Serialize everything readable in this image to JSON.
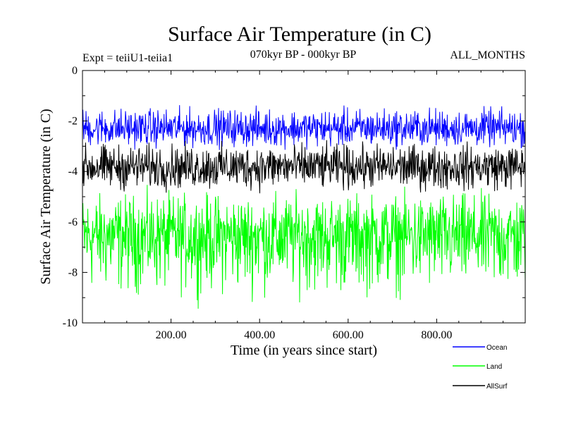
{
  "chart_data": {
    "type": "line",
    "title": "Surface Air Temperature (in C)",
    "subtitle": "070kyr BP - 000kyr BP",
    "left_label": "Expt = teiiU1-teiia1",
    "right_label": "ALL_MONTHS",
    "xlabel": "Time (in years since start)",
    "ylabel": "Surface Air Temperature (in C)",
    "xlim": [
      0,
      1000
    ],
    "ylim": [
      -10,
      0
    ],
    "xticks": [
      200,
      400,
      600,
      800
    ],
    "xtick_labels": [
      "200.00",
      "400.00",
      "600.00",
      "800.00"
    ],
    "yticks": [
      0,
      -2,
      -4,
      -6,
      -8,
      -10
    ],
    "ytick_labels": [
      "0",
      "-2",
      "-4",
      "-6",
      "-8",
      "-10"
    ],
    "legend_position": "bottom-right, outside plot",
    "series": [
      {
        "name": "Ocean",
        "color": "#0000ff",
        "mean": -2.3,
        "min": -3.3,
        "max": -1.2
      },
      {
        "name": "Land",
        "color": "#00ff00",
        "mean": -6.5,
        "min": -9.6,
        "max": -4.3
      },
      {
        "name": "AllSurf",
        "color": "#000000",
        "mean": -3.8,
        "min": -5.1,
        "max": -2.6
      }
    ]
  }
}
